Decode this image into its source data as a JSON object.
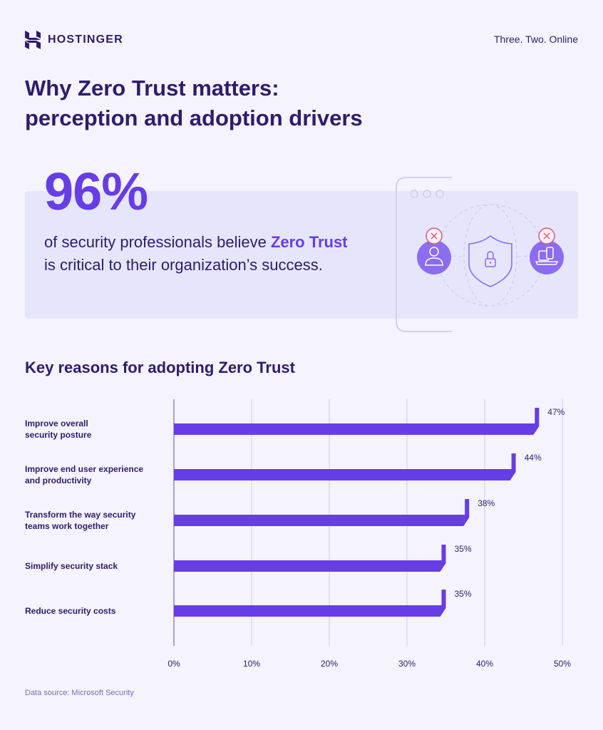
{
  "header": {
    "brand": "HOSTINGER",
    "tagline": "Three. Two. Online"
  },
  "title_line1": "Why Zero Trust matters:",
  "title_line2": "perception and adoption drivers",
  "stat": {
    "value": "96%",
    "text_before": "of security professionals believe ",
    "highlight": "Zero Trust",
    "text_after": "is critical to their organization’s success."
  },
  "illustration": {
    "icons": [
      "browser-window",
      "user-icon",
      "shield-lock-icon",
      "devices-icon",
      "blocked-x-icon"
    ]
  },
  "section_title": "Key reasons for adopting Zero Trust",
  "source": "Data source: Microsoft Security",
  "colors": {
    "bar": "#673de6",
    "text": "#2f1c6a",
    "grid": "#cfcaf5",
    "background": "#f4f3fe",
    "panel": "#e5e6fc",
    "alert": "#e0577a"
  },
  "chart_data": {
    "type": "bar",
    "orientation": "horizontal",
    "title": "Key reasons for adopting Zero Trust",
    "categories": [
      "Improve overall security posture",
      "Improve end user experience and productivity",
      "Transform the way security teams work together",
      "Simplify security stack",
      "Reduce security costs"
    ],
    "category_lines": [
      [
        "Improve overall",
        "security posture"
      ],
      [
        "Improve end user experience",
        "and productivity"
      ],
      [
        "Transform the way security",
        "teams work together"
      ],
      [
        "Simplify security stack"
      ],
      [
        "Reduce security costs"
      ]
    ],
    "values": [
      47,
      44,
      38,
      35,
      35
    ],
    "value_labels": [
      "47%",
      "44%",
      "38%",
      "35%",
      "35%"
    ],
    "xlabel": "",
    "ylabel": "",
    "xlim": [
      0,
      50
    ],
    "x_ticks": [
      "0%",
      "10%",
      "20%",
      "30%",
      "40%",
      "50%"
    ],
    "grid": true,
    "legend": null,
    "source": "Microsoft Security"
  }
}
